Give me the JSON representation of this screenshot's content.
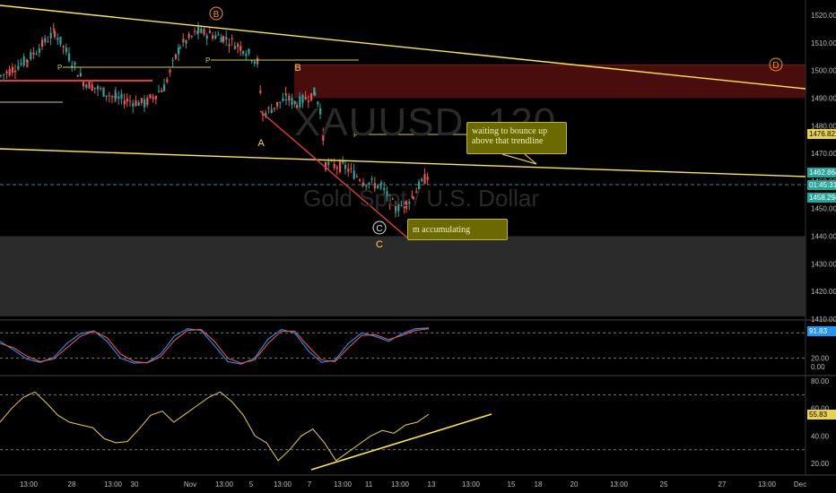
{
  "watermark": {
    "symbol": "XAUUSD, 120",
    "description": "Gold Spot / U.S. Dollar"
  },
  "notes": {
    "bounce": "waiting to bounce up above that trendline",
    "accum": "m accumulating"
  },
  "wave_labels": {
    "b_circle": "B",
    "d_circle": "D",
    "c_circle": "C",
    "a": "A",
    "b": "B",
    "c": "C"
  },
  "pivot_labels": [
    "P",
    "P",
    "P"
  ],
  "price_tags": {
    "level1": "1476.821",
    "current": "1462.864",
    "countdown": "01:45:31",
    "low": "1458.294",
    "stoch": "91.83",
    "rsi": "55.83"
  },
  "colors": {
    "up": "#26a69a",
    "down": "#ef5350",
    "trendline": "#ffeb3b",
    "accent": "#ff9800",
    "stoch_k": "#2196f3",
    "stoch_d": "#ef5350",
    "rsi": "#e6d34a"
  },
  "chart_data": [
    {
      "type": "candlestick",
      "title": "",
      "y_ticks": [
        "1520.00",
        "1510.00",
        "1500.00",
        "1490.00",
        "1480.00",
        "1470.00",
        "1460.00",
        "1450.00",
        "1440.00",
        "1430.00",
        "1420.00",
        "1410.00"
      ],
      "ylim": [
        1406,
        1525
      ],
      "x_ticks": [
        "13:00",
        "28",
        "13:00",
        "30",
        "Nov",
        "13:00",
        "5",
        "13:00",
        "7",
        "13:00",
        "11",
        "13:00",
        "13",
        "13:00",
        "15",
        "18",
        "20",
        "13:00",
        "25",
        "27",
        "13:00",
        "Dec"
      ],
      "close_path": [
        [
          "Oct 25 13:00",
          1498
        ],
        [
          "Oct 27",
          1504
        ],
        [
          "Oct 28 06:00",
          1514
        ],
        [
          "Oct 28 18:00",
          1496
        ],
        [
          "Oct 29 12:00",
          1490
        ],
        [
          "Oct 30 06:00",
          1488
        ],
        [
          "Oct 30 20:00",
          1494
        ],
        [
          "Oct 31 12:00",
          1509
        ],
        [
          "Nov 1",
          1514
        ],
        [
          "Nov 1 18:00",
          1512
        ],
        [
          "Nov 4 06:00",
          1508
        ],
        [
          "Nov 4 18:00",
          1503
        ],
        [
          "Nov 5 00:00",
          1484
        ],
        [
          "Nov 5 14:00",
          1490
        ],
        [
          "Nov 6 06:00",
          1488
        ],
        [
          "Nov 6 18:00",
          1492
        ],
        [
          "Nov 7 06:00",
          1486
        ],
        [
          "Nov 7 18:00",
          1466
        ],
        [
          "Nov 8 06:00",
          1465
        ],
        [
          "Nov 8 18:00",
          1460
        ],
        [
          "Nov 11 06:00",
          1458
        ],
        [
          "Nov 11 18:00",
          1450
        ],
        [
          "Nov 12 06:00",
          1452
        ],
        [
          "Nov 12 14:00",
          1455
        ],
        [
          "Nov 12 20:00",
          1458
        ],
        [
          "Nov 13 06:00",
          1462.864
        ]
      ],
      "zones": [
        {
          "name": "resistance",
          "from": 1490,
          "to": 1502,
          "color": "#4a0d0d"
        },
        {
          "name": "support",
          "from": 1411,
          "to": 1440,
          "color": "#2b2b2b"
        }
      ],
      "trendlines": [
        "upper yellow",
        "lower yellow",
        "red C-wave"
      ]
    },
    {
      "type": "line",
      "title": "",
      "y_ticks": [
        "80.00",
        "20.00",
        "0.00"
      ],
      "ylim": [
        0,
        100
      ],
      "series": [
        {
          "values": [
            60,
            40,
            18,
            10,
            22,
            55,
            78,
            85,
            60,
            20,
            8,
            10,
            30,
            72,
            90,
            86,
            50,
            12,
            6,
            20,
            65,
            88,
            80,
            38,
            10,
            15,
            55,
            80,
            72,
            60,
            78,
            90,
            91.83
          ]
        },
        {
          "values": [
            55,
            45,
            25,
            12,
            18,
            45,
            72,
            84,
            68,
            30,
            12,
            9,
            24,
            62,
            86,
            88,
            60,
            20,
            8,
            16,
            55,
            84,
            84,
            48,
            16,
            12,
            45,
            74,
            76,
            64,
            74,
            86,
            90
          ]
        }
      ]
    },
    {
      "type": "line",
      "title": "",
      "y_ticks": [
        "80.00",
        "60.00",
        "40.00",
        "20.00"
      ],
      "ylim": [
        15,
        85
      ],
      "series": [
        {
          "values": [
            50,
            60,
            68,
            72,
            64,
            55,
            50,
            48,
            46,
            38,
            35,
            36,
            45,
            55,
            58,
            50,
            56,
            62,
            68,
            72,
            65,
            55,
            40,
            35,
            22,
            30,
            40,
            45,
            35,
            22,
            28,
            34,
            40,
            44,
            42,
            48,
            50,
            55.83
          ]
        }
      ]
    }
  ]
}
